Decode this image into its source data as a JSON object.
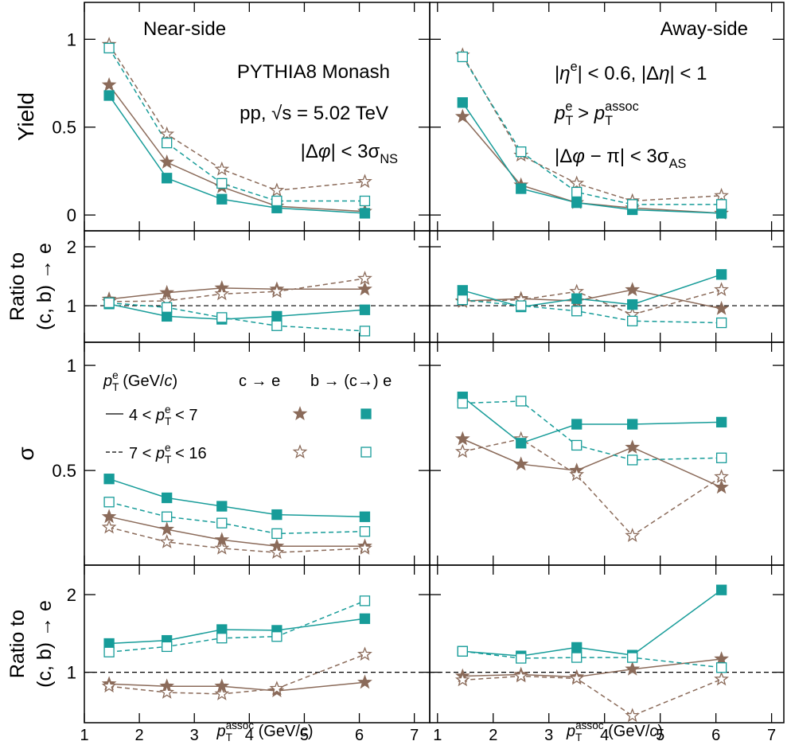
{
  "chart_data": [
    {
      "type": "line",
      "x": [
        1.45,
        2.5,
        3.5,
        4.5,
        6.1
      ],
      "xlim": [
        1,
        7.28
      ],
      "xticks": [
        1,
        2,
        3,
        4,
        5,
        6,
        7
      ],
      "ylim": [
        -0.09,
        1.21
      ],
      "yticks": [
        0,
        0.5,
        1
      ],
      "ylabel": [
        "Yield"
      ],
      "annotations": [
        [
          {
            "text": "Near-side"
          }
        ],
        [
          {
            "text": "PYTHIA8 Monash"
          }
        ],
        [
          {
            "text": "pp, √s = 5.02 TeV"
          }
        ],
        [
          {
            "text": "|Δ"
          },
          {
            "text": "φ",
            "style": "italic"
          },
          {
            "text": "| < 3σ"
          },
          {
            "text": "NS",
            "style": "sub"
          }
        ]
      ],
      "series": [
        {
          "color": "#8b6b5a",
          "marker": "star-filled",
          "dashed": false,
          "values": [
            0.74,
            0.3,
            0.16,
            0.05,
            0.02
          ]
        },
        {
          "color": "#8b6b5a",
          "marker": "star-open",
          "dashed": true,
          "values": [
            0.97,
            0.46,
            0.26,
            0.14,
            0.19
          ]
        },
        {
          "color": "#179c99",
          "marker": "square-filled",
          "dashed": false,
          "values": [
            0.68,
            0.21,
            0.09,
            0.04,
            0.01
          ]
        },
        {
          "color": "#179c99",
          "marker": "square-open",
          "dashed": true,
          "values": [
            0.95,
            0.41,
            0.18,
            0.08,
            0.08
          ]
        }
      ]
    },
    {
      "type": "line",
      "x": [
        1.45,
        2.5,
        3.5,
        4.5,
        6.1
      ],
      "xlim": [
        0.86,
        7.22
      ],
      "xticks": [
        1,
        2,
        3,
        4,
        5,
        6,
        7
      ],
      "ylim": [
        -0.09,
        1.21
      ],
      "yticks": [
        0,
        0.5,
        1
      ],
      "annotations": [
        [
          {
            "text": "Away-side"
          }
        ],
        [
          {
            "text": "|"
          },
          {
            "text": "η",
            "style": "italic"
          },
          {
            "text": "e",
            "style": "sup"
          },
          {
            "text": "| < 0.6, |Δ"
          },
          {
            "text": "η",
            "style": "italic"
          },
          {
            "text": "| < 1"
          }
        ],
        [
          {
            "text": "p",
            "style": "italic"
          },
          {
            "text": "T",
            "style": "sub"
          },
          {
            "text": "e",
            "style": "sup"
          },
          {
            "text": " > "
          },
          {
            "text": "p",
            "style": "italic"
          },
          {
            "text": "T",
            "style": "sub"
          },
          {
            "text": "assoc",
            "style": "sup"
          }
        ],
        [
          {
            "text": "|Δ"
          },
          {
            "text": "φ",
            "style": "italic"
          },
          {
            "text": " − π| < 3σ"
          },
          {
            "text": "AS",
            "style": "sub"
          }
        ]
      ],
      "series": [
        {
          "color": "#8b6b5a",
          "marker": "star-filled",
          "dashed": false,
          "values": [
            0.56,
            0.17,
            0.07,
            0.04,
            0.01
          ]
        },
        {
          "color": "#8b6b5a",
          "marker": "star-open",
          "dashed": true,
          "values": [
            0.91,
            0.34,
            0.18,
            0.08,
            0.11
          ]
        },
        {
          "color": "#179c99",
          "marker": "square-filled",
          "dashed": false,
          "values": [
            0.64,
            0.15,
            0.07,
            0.03,
            0.01
          ]
        },
        {
          "color": "#179c99",
          "marker": "square-open",
          "dashed": true,
          "values": [
            0.9,
            0.36,
            0.13,
            0.06,
            0.06
          ]
        }
      ]
    },
    {
      "type": "line",
      "x": [
        1.45,
        2.5,
        3.5,
        4.5,
        6.1
      ],
      "xlim": [
        1,
        7.28
      ],
      "xticks": [
        1,
        2,
        3,
        4,
        5,
        6,
        7
      ],
      "ylim": [
        0.38,
        2.27
      ],
      "yticks": [
        1,
        2
      ],
      "refline": 1,
      "ylabel": [
        "Ratio to",
        "(c, b) → e"
      ],
      "series": [
        {
          "color": "#8b6b5a",
          "marker": "star-filled",
          "dashed": false,
          "values": [
            1.11,
            1.22,
            1.3,
            1.28,
            1.28
          ]
        },
        {
          "color": "#8b6b5a",
          "marker": "star-open",
          "dashed": true,
          "values": [
            1.07,
            1.08,
            1.2,
            1.24,
            1.46
          ]
        },
        {
          "color": "#179c99",
          "marker": "square-filled",
          "dashed": false,
          "values": [
            1.03,
            0.82,
            0.77,
            0.82,
            0.93
          ]
        },
        {
          "color": "#179c99",
          "marker": "square-open",
          "dashed": true,
          "values": [
            1.05,
            0.97,
            0.8,
            0.66,
            0.57
          ]
        }
      ]
    },
    {
      "type": "line",
      "x": [
        1.45,
        2.5,
        3.5,
        4.5,
        6.1
      ],
      "xlim": [
        0.86,
        7.22
      ],
      "xticks": [
        1,
        2,
        3,
        4,
        5,
        6,
        7
      ],
      "ylim": [
        0.38,
        2.27
      ],
      "yticks": [
        1,
        2
      ],
      "refline": 1,
      "series": [
        {
          "color": "#8b6b5a",
          "marker": "star-filled",
          "dashed": false,
          "values": [
            1.08,
            1.12,
            1.08,
            1.27,
            0.95
          ]
        },
        {
          "color": "#8b6b5a",
          "marker": "star-open",
          "dashed": true,
          "values": [
            1.07,
            1.1,
            1.24,
            0.85,
            1.27
          ]
        },
        {
          "color": "#179c99",
          "marker": "square-filled",
          "dashed": false,
          "values": [
            1.26,
            0.98,
            1.12,
            1.02,
            1.53
          ]
        },
        {
          "color": "#179c99",
          "marker": "square-open",
          "dashed": true,
          "values": [
            1.1,
            1.0,
            0.91,
            0.74,
            0.71
          ]
        }
      ]
    },
    {
      "type": "line",
      "x": [
        1.45,
        2.5,
        3.5,
        4.5,
        6.1
      ],
      "xlim": [
        1,
        7.28
      ],
      "xticks": [
        1,
        2,
        3,
        4,
        5,
        6,
        7
      ],
      "ylim": [
        0.05,
        1.11
      ],
      "yticks": [
        0.5,
        1
      ],
      "ylabel": [
        "σ"
      ],
      "legend": {
        "header": [
          {
            "text": "p",
            "style": "italic"
          },
          {
            "text": "T",
            "style": "sub"
          },
          {
            "text": "e",
            "style": "sup"
          },
          {
            "text": " (GeV/"
          },
          {
            "text": "c",
            "style": "italic"
          },
          {
            "text": ")"
          }
        ],
        "species": [
          "c → e",
          "b → (c→) e"
        ],
        "ranges": [
          [
            {
              "text": "4 < "
            },
            {
              "text": "p",
              "style": "italic"
            },
            {
              "text": "T",
              "style": "sub"
            },
            {
              "text": "e",
              "style": "sup"
            },
            {
              "text": " < 7"
            }
          ],
          [
            {
              "text": "7 < "
            },
            {
              "text": "p",
              "style": "italic"
            },
            {
              "text": "T",
              "style": "sub"
            },
            {
              "text": "e",
              "style": "sup"
            },
            {
              "text": " < 16"
            }
          ]
        ]
      },
      "series": [
        {
          "color": "#8b6b5a",
          "marker": "star-filled",
          "dashed": false,
          "values": [
            0.28,
            0.22,
            0.17,
            0.14,
            0.14
          ]
        },
        {
          "color": "#8b6b5a",
          "marker": "star-open",
          "dashed": true,
          "values": [
            0.23,
            0.16,
            0.13,
            0.11,
            0.13
          ]
        },
        {
          "color": "#179c99",
          "marker": "square-filled",
          "dashed": false,
          "values": [
            0.46,
            0.37,
            0.33,
            0.29,
            0.28
          ]
        },
        {
          "color": "#179c99",
          "marker": "square-open",
          "dashed": true,
          "values": [
            0.35,
            0.28,
            0.25,
            0.2,
            0.21
          ]
        }
      ]
    },
    {
      "type": "line",
      "x": [
        1.45,
        2.5,
        3.5,
        4.5,
        6.1
      ],
      "xlim": [
        0.86,
        7.22
      ],
      "xticks": [
        1,
        2,
        3,
        4,
        5,
        6,
        7
      ],
      "ylim": [
        0.05,
        1.11
      ],
      "yticks": [
        0.5,
        1
      ],
      "series": [
        {
          "color": "#8b6b5a",
          "marker": "star-filled",
          "dashed": false,
          "values": [
            0.65,
            0.53,
            0.5,
            0.61,
            0.42
          ]
        },
        {
          "color": "#8b6b5a",
          "marker": "star-open",
          "dashed": true,
          "values": [
            0.59,
            0.65,
            0.48,
            0.19,
            0.47
          ]
        },
        {
          "color": "#179c99",
          "marker": "square-filled",
          "dashed": false,
          "values": [
            0.85,
            0.63,
            0.72,
            0.72,
            0.73
          ]
        },
        {
          "color": "#179c99",
          "marker": "square-open",
          "dashed": true,
          "values": [
            0.82,
            0.83,
            0.62,
            0.55,
            0.56
          ]
        }
      ]
    },
    {
      "type": "line",
      "x": [
        1.45,
        2.5,
        3.5,
        4.5,
        6.1
      ],
      "xlim": [
        1,
        7.28
      ],
      "xticks": [
        1,
        2,
        3,
        4,
        5,
        6,
        7
      ],
      "ylim": [
        0.35,
        2.38
      ],
      "yticks": [
        1,
        2
      ],
      "refline": 1,
      "ylabel": [
        "Ratio to",
        "(c, b) → e"
      ],
      "xlabel": [
        {
          "text": "p",
          "style": "italic"
        },
        {
          "text": "T",
          "style": "sub"
        },
        {
          "text": "assoc",
          "style": "sup"
        },
        {
          "text": " (GeV/"
        },
        {
          "text": "c",
          "style": "italic"
        },
        {
          "text": ")"
        }
      ],
      "series": [
        {
          "color": "#8b6b5a",
          "marker": "star-filled",
          "dashed": false,
          "values": [
            0.85,
            0.82,
            0.82,
            0.76,
            0.87
          ]
        },
        {
          "color": "#8b6b5a",
          "marker": "star-open",
          "dashed": true,
          "values": [
            0.82,
            0.74,
            0.72,
            0.79,
            1.23
          ]
        },
        {
          "color": "#179c99",
          "marker": "square-filled",
          "dashed": false,
          "values": [
            1.37,
            1.41,
            1.55,
            1.54,
            1.69
          ]
        },
        {
          "color": "#179c99",
          "marker": "square-open",
          "dashed": true,
          "values": [
            1.26,
            1.33,
            1.44,
            1.46,
            1.92
          ]
        }
      ]
    },
    {
      "type": "line",
      "x": [
        1.45,
        2.5,
        3.5,
        4.5,
        6.1
      ],
      "xlim": [
        0.86,
        7.22
      ],
      "xticks": [
        1,
        2,
        3,
        4,
        5,
        6,
        7
      ],
      "ylim": [
        0.35,
        2.38
      ],
      "yticks": [
        1,
        2
      ],
      "refline": 1,
      "xlabel": [
        {
          "text": "p",
          "style": "italic"
        },
        {
          "text": "T",
          "style": "sub"
        },
        {
          "text": "assoc",
          "style": "sup"
        },
        {
          "text": " (GeV/"
        },
        {
          "text": "c",
          "style": "italic"
        },
        {
          "text": ")"
        }
      ],
      "series": [
        {
          "color": "#8b6b5a",
          "marker": "star-filled",
          "dashed": false,
          "values": [
            0.95,
            0.97,
            0.94,
            1.04,
            1.17
          ]
        },
        {
          "color": "#8b6b5a",
          "marker": "star-open",
          "dashed": true,
          "values": [
            0.9,
            0.95,
            0.92,
            0.44,
            0.91
          ]
        },
        {
          "color": "#179c99",
          "marker": "square-filled",
          "dashed": false,
          "values": [
            1.27,
            1.21,
            1.32,
            1.22,
            2.06
          ]
        },
        {
          "color": "#179c99",
          "marker": "square-open",
          "dashed": true,
          "values": [
            1.27,
            1.18,
            1.19,
            1.19,
            1.06
          ]
        }
      ]
    }
  ]
}
